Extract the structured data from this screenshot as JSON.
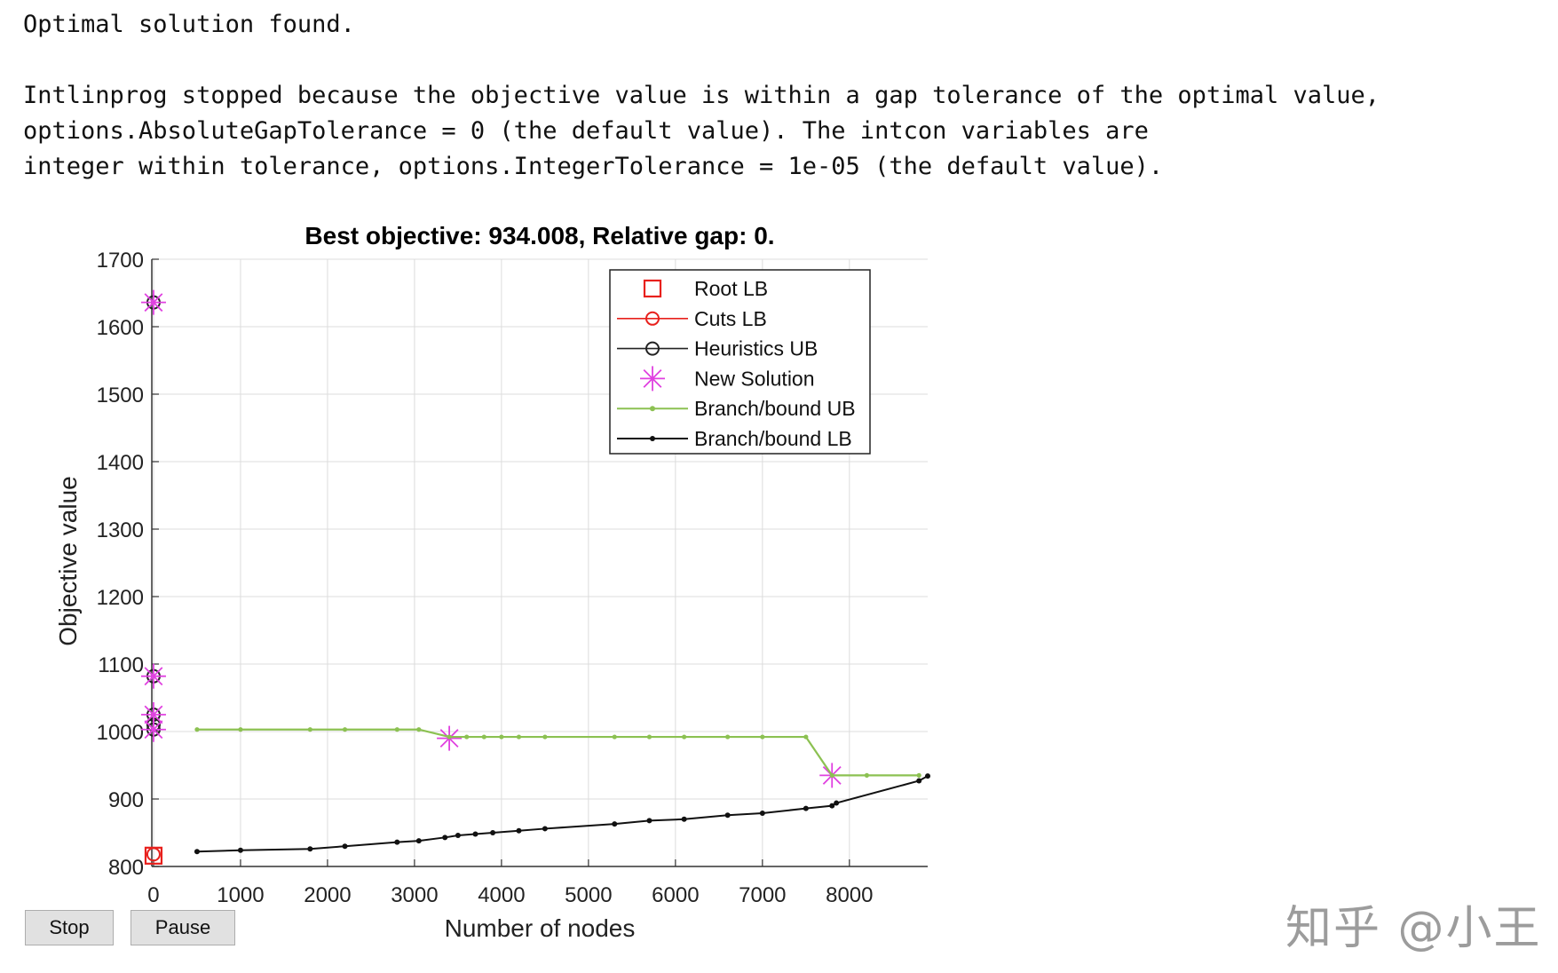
{
  "console": {
    "status_line": "Optimal solution found.",
    "message_lines": [
      "Intlinprog stopped because the objective value is within a gap tolerance of the optimal value,",
      "options.AbsoluteGapTolerance = 0 (the default value). The intcon variables are",
      "integer within tolerance, options.IntegerTolerance = 1e-05 (the default value)."
    ]
  },
  "buttons": {
    "stop_label": "Stop",
    "pause_label": "Pause"
  },
  "watermark": "知乎 @小王",
  "chart_data": {
    "type": "line",
    "title": "Best objective: 934.008, Relative gap: 0.",
    "xlabel": "Number of nodes",
    "ylabel": "Objective value",
    "xlim": [
      -20,
      8900
    ],
    "ylim": [
      800,
      1700
    ],
    "xticks": [
      0,
      1000,
      2000,
      3000,
      4000,
      5000,
      6000,
      7000,
      8000
    ],
    "yticks": [
      800,
      900,
      1000,
      1100,
      1200,
      1300,
      1400,
      1500,
      1600,
      1700
    ],
    "grid": true,
    "legend_position": "top-right",
    "colors": {
      "root_lb": "#e8201c",
      "cuts_lb": "#e8201c",
      "heuristics_ub": "#222222",
      "new_solution": "#e040e0",
      "bb_ub": "#8cc152",
      "bb_lb": "#111111"
    },
    "series": [
      {
        "name": "Root LB",
        "marker": "square",
        "points": [
          [
            0,
            816
          ]
        ]
      },
      {
        "name": "Cuts LB",
        "marker": "circle-red",
        "points": [
          [
            0,
            818
          ]
        ]
      },
      {
        "name": "Heuristics UB",
        "marker": "circle-black",
        "points": [
          [
            0,
            1636
          ],
          [
            0,
            1082
          ],
          [
            0,
            1025
          ],
          [
            0,
            1010
          ],
          [
            0,
            1003
          ]
        ]
      },
      {
        "name": "New Solution",
        "marker": "asterisk",
        "points": [
          [
            0,
            1636
          ],
          [
            0,
            1082
          ],
          [
            0,
            1025
          ],
          [
            0,
            1003
          ],
          [
            3400,
            990
          ],
          [
            7800,
            935
          ]
        ]
      },
      {
        "name": "Branch/bound UB",
        "marker": "dot-line",
        "points": [
          [
            500,
            1003
          ],
          [
            1000,
            1003
          ],
          [
            1800,
            1003
          ],
          [
            2200,
            1003
          ],
          [
            2800,
            1003
          ],
          [
            3050,
            1003
          ],
          [
            3400,
            992
          ],
          [
            3600,
            992
          ],
          [
            3800,
            992
          ],
          [
            4000,
            992
          ],
          [
            4200,
            992
          ],
          [
            4500,
            992
          ],
          [
            5300,
            992
          ],
          [
            5700,
            992
          ],
          [
            6100,
            992
          ],
          [
            6600,
            992
          ],
          [
            7000,
            992
          ],
          [
            7500,
            992
          ],
          [
            7800,
            935
          ],
          [
            8200,
            935
          ],
          [
            8800,
            935
          ]
        ]
      },
      {
        "name": "Branch/bound LB",
        "marker": "dot-line",
        "points": [
          [
            500,
            822
          ],
          [
            1000,
            824
          ],
          [
            1800,
            826
          ],
          [
            2200,
            830
          ],
          [
            2800,
            836
          ],
          [
            3050,
            838
          ],
          [
            3350,
            843
          ],
          [
            3500,
            846
          ],
          [
            3700,
            848
          ],
          [
            3900,
            850
          ],
          [
            4200,
            853
          ],
          [
            4500,
            856
          ],
          [
            5300,
            863
          ],
          [
            5700,
            868
          ],
          [
            6100,
            870
          ],
          [
            6600,
            876
          ],
          [
            7000,
            879
          ],
          [
            7500,
            886
          ],
          [
            7800,
            890
          ],
          [
            7850,
            894
          ],
          [
            8800,
            927
          ],
          [
            8900,
            934
          ]
        ]
      }
    ]
  }
}
